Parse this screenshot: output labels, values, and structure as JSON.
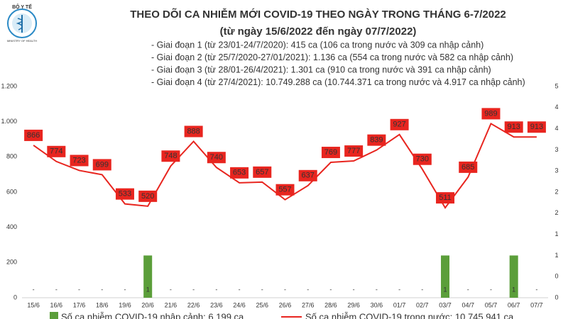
{
  "chart_data": {
    "type": "bar_line",
    "logo_text": "BỘ Y TẾ",
    "logo_subtext": "MINISTRY OF HEALTH",
    "title": "THEO DÕI CA NHIỄM MỚI COVID-19 THEO NGÀY TRONG THÁNG 6-7/2022",
    "subtitle": "(từ ngày 15/6/2022 đến ngày 07/7/2022)",
    "notes": [
      "- Giai đoạn 1 (từ 23/01-24/7/2020): 415 ca (106 ca trong nước và 309 ca nhập cảnh)",
      "- Giai đoạn 2 (từ 25/7/2020-27/01/2021): 1.136 ca (554 ca trong nước và 582 ca nhập cảnh)",
      "- Giai đoạn 3 (từ 28/01-26/4/2021): 1.301 ca (910 ca trong nước và 391 ca nhập cảnh)",
      "- Giai đoạn 4 (từ 27/4/2021): 10.749.288 ca (10.744.371 ca trong nước và 4.917 ca nhập cảnh)"
    ],
    "categories": [
      "15/6",
      "16/6",
      "17/6",
      "18/6",
      "19/6",
      "20/6",
      "21/6",
      "22/6",
      "23/6",
      "24/6",
      "25/6",
      "26/6",
      "27/6",
      "28/6",
      "29/6",
      "30/6",
      "01/7",
      "02/7",
      "03/7",
      "04/7",
      "05/7",
      "06/7",
      "07/7"
    ],
    "series": [
      {
        "name": "Số ca nhiễm COVID-19 nhập cảnh: 6.199 ca",
        "color": "#5b9e3a",
        "axis": "y2",
        "values": [
          0,
          0,
          0,
          0,
          0,
          1,
          0,
          0,
          0,
          0,
          0,
          0,
          0,
          0,
          0,
          0,
          0,
          0,
          1,
          0,
          0,
          1,
          0
        ],
        "value_labels": [
          "-",
          "-",
          "-",
          "-",
          "-",
          "1",
          "-",
          "-",
          "-",
          "-",
          "-",
          "-",
          "-",
          "-",
          "-",
          "-",
          "-",
          "-",
          "1",
          "-",
          "-",
          "1",
          "-"
        ]
      },
      {
        "name": "Số ca nhiễm COVID-19 trong nước: 10.745.941 ca",
        "color": "#e8251f",
        "values": [
          866,
          774,
          723,
          699,
          533,
          520,
          748,
          888,
          740,
          653,
          657,
          557,
          637,
          769,
          777,
          839,
          927,
          730,
          511,
          685,
          989,
          913,
          913
        ]
      }
    ],
    "ylim": [
      0,
      1200
    ],
    "yticks": [
      0,
      200,
      400,
      600,
      800,
      {
        "value": 1000,
        "label": "1.000"
      },
      {
        "value": 1200,
        "label": "1.200"
      }
    ],
    "y2lim": [
      0,
      5
    ],
    "y2ticks": [
      0,
      {
        "value": 0.5,
        "label": "0"
      },
      1,
      {
        "value": 1.5,
        "label": "1"
      },
      2,
      {
        "value": 2.5,
        "label": "2"
      },
      3,
      {
        "value": 3.5,
        "label": "3"
      },
      4,
      {
        "value": 4.5,
        "label": "4"
      },
      5
    ]
  }
}
